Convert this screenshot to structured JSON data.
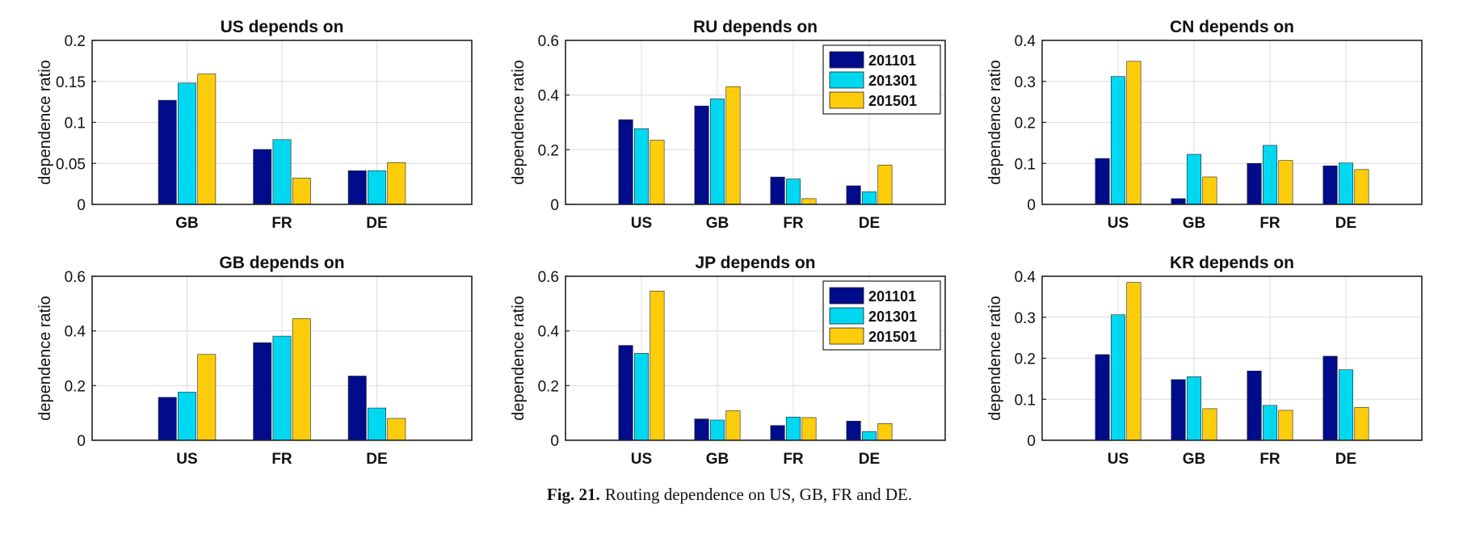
{
  "caption": {
    "label": "Fig. 21.",
    "text": "Routing dependence on US, GB, FR and DE."
  },
  "colors": {
    "201101": "#000c8c",
    "201301": "#00d8f2",
    "201501": "#fdcd0c"
  },
  "chart_data": [
    {
      "type": "bar",
      "title": "US depends on",
      "xlabel": "",
      "ylabel": "dependence ratio",
      "categories": [
        "GB",
        "FR",
        "DE"
      ],
      "ylim": [
        0,
        0.2
      ],
      "yticks": [
        "0",
        "0.05",
        "0.1",
        "0.15",
        "0.2"
      ],
      "grid": true,
      "legend": false,
      "series": [
        {
          "name": "201101",
          "values": [
            0.127,
            0.067,
            0.041
          ]
        },
        {
          "name": "201301",
          "values": [
            0.148,
            0.079,
            0.041
          ]
        },
        {
          "name": "201501",
          "values": [
            0.159,
            0.032,
            0.051
          ]
        }
      ]
    },
    {
      "type": "bar",
      "title": "RU depends on",
      "xlabel": "",
      "ylabel": "dependence ratio",
      "categories": [
        "US",
        "GB",
        "FR",
        "DE"
      ],
      "ylim": [
        0,
        0.6
      ],
      "yticks": [
        "0",
        "0.2",
        "0.4",
        "0.6"
      ],
      "grid": true,
      "legend": "top-right",
      "series": [
        {
          "name": "201101",
          "values": [
            0.31,
            0.36,
            0.1,
            0.068
          ]
        },
        {
          "name": "201301",
          "values": [
            0.277,
            0.386,
            0.093,
            0.046
          ]
        },
        {
          "name": "201501",
          "values": [
            0.235,
            0.431,
            0.021,
            0.144
          ]
        }
      ]
    },
    {
      "type": "bar",
      "title": "CN depends on",
      "xlabel": "",
      "ylabel": "dependence ratio",
      "categories": [
        "US",
        "GB",
        "FR",
        "DE"
      ],
      "ylim": [
        0,
        0.4
      ],
      "yticks": [
        "0",
        "0.1",
        "0.2",
        "0.3",
        "0.4"
      ],
      "grid": true,
      "legend": false,
      "series": [
        {
          "name": "201101",
          "values": [
            0.112,
            0.014,
            0.1,
            0.094
          ]
        },
        {
          "name": "201301",
          "values": [
            0.312,
            0.122,
            0.144,
            0.101
          ]
        },
        {
          "name": "201501",
          "values": [
            0.349,
            0.067,
            0.107,
            0.085
          ]
        }
      ]
    },
    {
      "type": "bar",
      "title": "GB depends on",
      "xlabel": "",
      "ylabel": "dependence ratio",
      "categories": [
        "US",
        "FR",
        "DE"
      ],
      "ylim": [
        0,
        0.6
      ],
      "yticks": [
        "0",
        "0.2",
        "0.4",
        "0.6"
      ],
      "grid": true,
      "legend": false,
      "series": [
        {
          "name": "201101",
          "values": [
            0.157,
            0.357,
            0.235
          ]
        },
        {
          "name": "201301",
          "values": [
            0.176,
            0.381,
            0.118
          ]
        },
        {
          "name": "201501",
          "values": [
            0.314,
            0.445,
            0.08
          ]
        }
      ]
    },
    {
      "type": "bar",
      "title": "JP depends on",
      "xlabel": "",
      "ylabel": "dependence ratio",
      "categories": [
        "US",
        "GB",
        "FR",
        "DE"
      ],
      "ylim": [
        0,
        0.6
      ],
      "yticks": [
        "0",
        "0.2",
        "0.4",
        "0.6"
      ],
      "grid": true,
      "legend": "top-right",
      "series": [
        {
          "name": "201101",
          "values": [
            0.347,
            0.078,
            0.054,
            0.07
          ]
        },
        {
          "name": "201301",
          "values": [
            0.318,
            0.074,
            0.085,
            0.032
          ]
        },
        {
          "name": "201501",
          "values": [
            0.546,
            0.108,
            0.083,
            0.061
          ]
        }
      ]
    },
    {
      "type": "bar",
      "title": "KR depends on",
      "xlabel": "",
      "ylabel": "dependence ratio",
      "categories": [
        "US",
        "GB",
        "FR",
        "DE"
      ],
      "ylim": [
        0,
        0.4
      ],
      "yticks": [
        "0",
        "0.1",
        "0.2",
        "0.3",
        "0.4"
      ],
      "grid": true,
      "legend": false,
      "series": [
        {
          "name": "201101",
          "values": [
            0.209,
            0.148,
            0.169,
            0.205
          ]
        },
        {
          "name": "201301",
          "values": [
            0.306,
            0.155,
            0.085,
            0.172
          ]
        },
        {
          "name": "201501",
          "values": [
            0.385,
            0.077,
            0.073,
            0.08
          ]
        }
      ]
    }
  ]
}
